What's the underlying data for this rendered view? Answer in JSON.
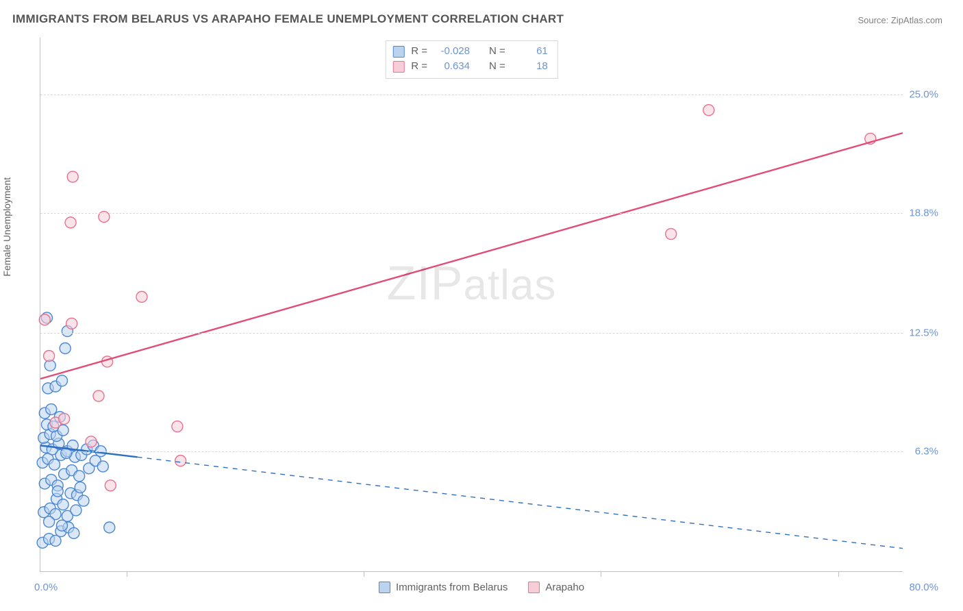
{
  "title": "IMMIGRANTS FROM BELARUS VS ARAPAHO FEMALE UNEMPLOYMENT CORRELATION CHART",
  "source_label": "Source: ZipAtlas.com",
  "y_axis_label": "Female Unemployment",
  "watermark": {
    "part1": "ZIP",
    "part2": "atlas"
  },
  "colors": {
    "series_a_fill": "#bcd3ef",
    "series_a_stroke": "#4a86d1",
    "series_b_fill": "#f7cdd7",
    "series_b_stroke": "#e7718e",
    "trend_a": "#2f6fc1",
    "trend_b": "#e14d77",
    "axis_text": "#6b95d6",
    "grid": "#d9d9d9"
  },
  "chart": {
    "type": "scatter",
    "x_domain": [
      0,
      80
    ],
    "y_domain": [
      0,
      28
    ],
    "x_origin_label": "0.0%",
    "x_max_label": "80.0%",
    "y_ticks": [
      {
        "v": 6.3,
        "label": "6.3%"
      },
      {
        "v": 12.5,
        "label": "12.5%"
      },
      {
        "v": 18.8,
        "label": "18.8%"
      },
      {
        "v": 25.0,
        "label": "25.0%"
      }
    ],
    "x_minor_ticks": [
      8,
      30,
      52,
      74
    ],
    "marker_radius": 8,
    "marker_opacity": 0.55,
    "line_width_solid": 2.4,
    "line_width_dash": 1.4
  },
  "stats_legend": {
    "r_label": "R =",
    "n_label": "N =",
    "rows": [
      {
        "r": "-0.028",
        "n": "61",
        "series": "a"
      },
      {
        "r": "0.634",
        "n": "18",
        "series": "b"
      }
    ]
  },
  "bottom_legend": {
    "a": "Immigrants from Belarus",
    "b": "Arapaho"
  },
  "series_a": {
    "points": [
      [
        0.2,
        1.5
      ],
      [
        0.8,
        1.7
      ],
      [
        1.4,
        1.6
      ],
      [
        1.9,
        2.1
      ],
      [
        2.6,
        2.3
      ],
      [
        3.1,
        2.0
      ],
      [
        0.3,
        3.1
      ],
      [
        0.9,
        3.3
      ],
      [
        1.5,
        3.8
      ],
      [
        2.1,
        3.5
      ],
      [
        2.8,
        4.1
      ],
      [
        3.4,
        4.0
      ],
      [
        0.4,
        4.6
      ],
      [
        1.0,
        4.8
      ],
      [
        1.6,
        4.5
      ],
      [
        2.2,
        5.1
      ],
      [
        2.9,
        5.3
      ],
      [
        3.6,
        5.0
      ],
      [
        0.2,
        5.7
      ],
      [
        0.7,
        5.9
      ],
      [
        1.3,
        5.6
      ],
      [
        1.9,
        6.1
      ],
      [
        2.5,
        6.3
      ],
      [
        3.2,
        6.0
      ],
      [
        0.5,
        6.5
      ],
      [
        1.1,
        6.4
      ],
      [
        1.7,
        6.7
      ],
      [
        2.4,
        6.2
      ],
      [
        3.0,
        6.6
      ],
      [
        3.8,
        6.1
      ],
      [
        4.3,
        6.4
      ],
      [
        4.9,
        6.6
      ],
      [
        5.6,
        6.3
      ],
      [
        0.3,
        7.0
      ],
      [
        0.9,
        7.2
      ],
      [
        1.5,
        7.1
      ],
      [
        2.1,
        7.4
      ],
      [
        0.6,
        7.7
      ],
      [
        1.2,
        7.6
      ],
      [
        1.8,
        8.1
      ],
      [
        0.4,
        8.3
      ],
      [
        1.0,
        8.5
      ],
      [
        0.7,
        9.6
      ],
      [
        1.4,
        9.7
      ],
      [
        2.0,
        10.0
      ],
      [
        0.9,
        10.8
      ],
      [
        2.3,
        11.7
      ],
      [
        2.5,
        12.6
      ],
      [
        0.6,
        13.3
      ],
      [
        1.4,
        3.0
      ],
      [
        2.0,
        2.4
      ],
      [
        2.5,
        2.9
      ],
      [
        3.3,
        3.2
      ],
      [
        4.0,
        3.7
      ],
      [
        4.5,
        5.4
      ],
      [
        5.1,
        5.8
      ],
      [
        5.8,
        5.5
      ],
      [
        6.4,
        2.3
      ],
      [
        0.8,
        2.6
      ],
      [
        1.6,
        4.2
      ],
      [
        3.7,
        4.4
      ]
    ],
    "trend": {
      "x1": 0,
      "y1": 6.6,
      "x2": 80,
      "y2": 1.2,
      "solid_to_x": 9
    }
  },
  "series_b": {
    "points": [
      [
        1.4,
        7.8
      ],
      [
        2.2,
        8.0
      ],
      [
        5.4,
        9.2
      ],
      [
        0.8,
        11.3
      ],
      [
        6.2,
        11.0
      ],
      [
        2.9,
        13.0
      ],
      [
        0.4,
        13.2
      ],
      [
        9.4,
        14.4
      ],
      [
        2.8,
        18.3
      ],
      [
        5.9,
        18.6
      ],
      [
        3.0,
        20.7
      ],
      [
        58.5,
        17.7
      ],
      [
        62.0,
        24.2
      ],
      [
        77.0,
        22.7
      ],
      [
        12.7,
        7.6
      ],
      [
        6.5,
        4.5
      ],
      [
        13.0,
        5.8
      ],
      [
        4.7,
        6.8
      ]
    ],
    "trend": {
      "x1": 0,
      "y1": 10.1,
      "x2": 80,
      "y2": 23.0
    }
  }
}
